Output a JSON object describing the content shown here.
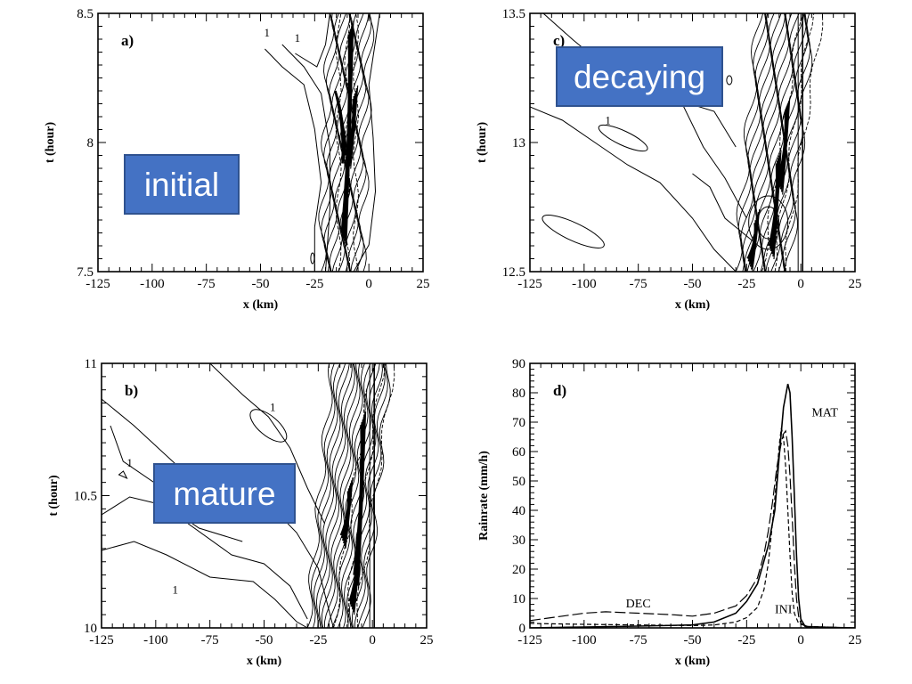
{
  "chart_data": [
    {
      "id": "a",
      "type": "contour",
      "panel_label": "a)",
      "badge": "initial",
      "xlabel": "x (km)",
      "ylabel": "t (hour)",
      "xlim": [
        -125,
        25
      ],
      "ylim": [
        7.5,
        8.5
      ],
      "xticks": [
        -125,
        -100,
        -75,
        -50,
        -25,
        0,
        25
      ],
      "yticks": [
        "7.5",
        "8",
        "8.5"
      ],
      "contour_labels": [
        "1",
        "1"
      ]
    },
    {
      "id": "b",
      "type": "contour",
      "panel_label": "b)",
      "badge": "mature",
      "xlabel": "x (km)",
      "ylabel": "t (hour)",
      "xlim": [
        -125,
        25
      ],
      "ylim": [
        10,
        11
      ],
      "xticks": [
        -125,
        -100,
        -75,
        -50,
        -25,
        0,
        25
      ],
      "yticks": [
        "10",
        "10.5",
        "11"
      ],
      "contour_labels": [
        "1",
        "1",
        "1"
      ]
    },
    {
      "id": "c",
      "type": "contour",
      "panel_label": "c)",
      "badge": "decaying",
      "xlabel": "x (km)",
      "ylabel": "t (hour)",
      "xlim": [
        -125,
        25
      ],
      "ylim": [
        12.5,
        13.5
      ],
      "xticks": [
        -125,
        -100,
        -75,
        -50,
        -25,
        0,
        25
      ],
      "yticks": [
        "12.5",
        "13",
        "13.5"
      ],
      "contour_labels": [
        "1"
      ]
    },
    {
      "id": "d",
      "type": "line",
      "panel_label": "d)",
      "xlabel": "x (km)",
      "ylabel": "Rainrate  (mm/h)",
      "xlim": [
        -125,
        25
      ],
      "ylim": [
        0,
        90
      ],
      "xticks": [
        -125,
        -100,
        -75,
        -50,
        -25,
        0,
        25
      ],
      "yticks": [
        0,
        10,
        20,
        30,
        40,
        50,
        60,
        70,
        80,
        90
      ],
      "series": [
        {
          "name": "MAT",
          "style": "solid",
          "points": [
            [
              -125,
              0
            ],
            [
              -100,
              0.3
            ],
            [
              -75,
              0.6
            ],
            [
              -50,
              1
            ],
            [
              -40,
              2
            ],
            [
              -30,
              5
            ],
            [
              -25,
              9
            ],
            [
              -20,
              15
            ],
            [
              -15,
              28
            ],
            [
              -12,
              40
            ],
            [
              -10,
              58
            ],
            [
              -8,
              75
            ],
            [
              -6,
              83
            ],
            [
              -5,
              80
            ],
            [
              -4,
              65
            ],
            [
              -3,
              45
            ],
            [
              -2,
              25
            ],
            [
              -1,
              10
            ],
            [
              0,
              3
            ],
            [
              2,
              0.5
            ],
            [
              5,
              0
            ],
            [
              25,
              0
            ]
          ]
        },
        {
          "name": "DEC",
          "style": "long-dash",
          "points": [
            [
              -125,
              2.5
            ],
            [
              -110,
              4
            ],
            [
              -100,
              5
            ],
            [
              -90,
              5.5
            ],
            [
              -75,
              5
            ],
            [
              -60,
              4.5
            ],
            [
              -50,
              4
            ],
            [
              -40,
              5
            ],
            [
              -30,
              7.5
            ],
            [
              -25,
              11
            ],
            [
              -20,
              17
            ],
            [
              -17,
              25
            ],
            [
              -15,
              33
            ],
            [
              -13,
              43
            ],
            [
              -11,
              55
            ],
            [
              -9,
              63
            ],
            [
              -8,
              66
            ],
            [
              -7,
              67
            ],
            [
              -6,
              62
            ],
            [
              -5,
              52
            ],
            [
              -4,
              38
            ],
            [
              -3,
              22
            ],
            [
              -2,
              10
            ],
            [
              -1,
              4
            ],
            [
              0,
              1.5
            ],
            [
              3,
              0.5
            ],
            [
              25,
              0
            ]
          ]
        },
        {
          "name": "INI",
          "style": "short-dash",
          "points": [
            [
              -125,
              1.5
            ],
            [
              -100,
              1.2
            ],
            [
              -75,
              1
            ],
            [
              -50,
              0.8
            ],
            [
              -40,
              1
            ],
            [
              -30,
              2
            ],
            [
              -25,
              3.5
            ],
            [
              -20,
              7
            ],
            [
              -17,
              13
            ],
            [
              -15,
              22
            ],
            [
              -13,
              36
            ],
            [
              -11,
              52
            ],
            [
              -10,
              62
            ],
            [
              -9,
              68
            ],
            [
              -8,
              65
            ],
            [
              -7,
              55
            ],
            [
              -6,
              40
            ],
            [
              -5,
              25
            ],
            [
              -4,
              12
            ],
            [
              -3,
              5
            ],
            [
              -1,
              1.5
            ],
            [
              1,
              1
            ],
            [
              3,
              0.5
            ],
            [
              25,
              0
            ]
          ]
        }
      ]
    }
  ]
}
